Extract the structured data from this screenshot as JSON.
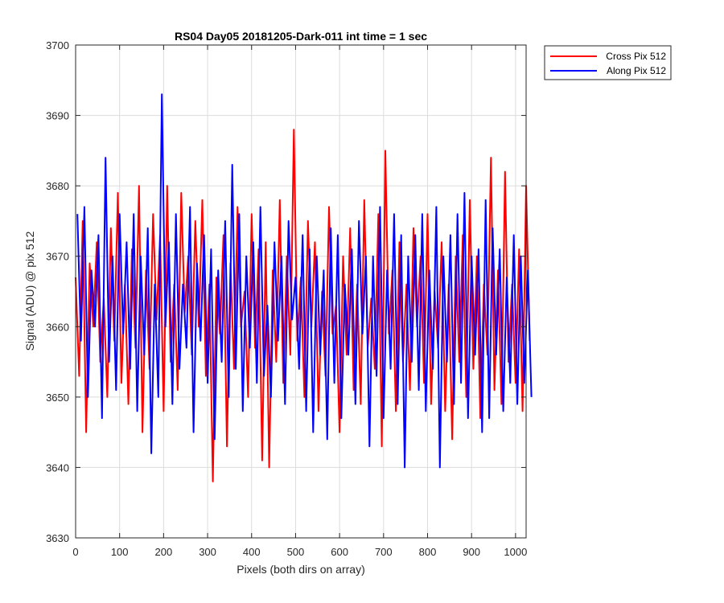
{
  "chart_data": {
    "type": "line",
    "title": "RS04 Day05 20181205-Dark-011 int time = 1 sec",
    "xlabel": "Pixels (both dirs on array)",
    "ylabel": "Signal (ADU) @ pix 512",
    "xlim": [
      0,
      1024
    ],
    "ylim": [
      3630,
      3700
    ],
    "xticks": [
      0,
      100,
      200,
      300,
      400,
      500,
      600,
      700,
      800,
      900,
      1000
    ],
    "yticks": [
      3630,
      3640,
      3650,
      3660,
      3670,
      3680,
      3690,
      3700
    ],
    "grid": true,
    "legend_placement": "outside-top-right",
    "series": [
      {
        "name": "Cross Pix 512",
        "color": "#ff0000",
        "x_start": 0,
        "x_step": 8,
        "values": [
          3667,
          3653,
          3675,
          3645,
          3669,
          3660,
          3672,
          3655,
          3664,
          3650,
          3674,
          3658,
          3679,
          3652,
          3666,
          3649,
          3671,
          3657,
          3680,
          3645,
          3668,
          3654,
          3676,
          3661,
          3673,
          3648,
          3680,
          3655,
          3666,
          3651,
          3679,
          3662,
          3670,
          3656,
          3675,
          3660,
          3678,
          3653,
          3666,
          3638,
          3667,
          3659,
          3673,
          3643,
          3669,
          3654,
          3677,
          3660,
          3665,
          3650,
          3676,
          3657,
          3671,
          3641,
          3672,
          3640,
          3668,
          3655,
          3678,
          3652,
          3670,
          3656,
          3688,
          3658,
          3667,
          3650,
          3675,
          3660,
          3672,
          3648,
          3665,
          3653,
          3677,
          3659,
          3663,
          3645,
          3670,
          3656,
          3674,
          3651,
          3666,
          3649,
          3678,
          3657,
          3664,
          3654,
          3676,
          3643,
          3685,
          3659,
          3668,
          3648,
          3672,
          3655,
          3666,
          3651,
          3674,
          3660,
          3670,
          3652,
          3676,
          3649,
          3665,
          3657,
          3672,
          3648,
          3666,
          3644,
          3670,
          3655,
          3673,
          3650,
          3678,
          3654,
          3670,
          3647,
          3666,
          3656,
          3684,
          3651,
          3668,
          3649,
          3682,
          3655,
          3666,
          3652,
          3671,
          3648,
          3680,
          3658
        ]
      },
      {
        "name": "Along Pix 512",
        "color": "#0000ff",
        "x_start": 4,
        "x_step": 8,
        "values": [
          3676,
          3658,
          3677,
          3650,
          3668,
          3660,
          3673,
          3647,
          3684,
          3655,
          3670,
          3651,
          3676,
          3659,
          3672,
          3654,
          3676,
          3648,
          3670,
          3656,
          3674,
          3642,
          3666,
          3650,
          3693,
          3660,
          3672,
          3649,
          3676,
          3654,
          3666,
          3657,
          3677,
          3645,
          3669,
          3658,
          3673,
          3652,
          3671,
          3644,
          3668,
          3655,
          3675,
          3650,
          3683,
          3654,
          3676,
          3648,
          3670,
          3657,
          3672,
          3652,
          3677,
          3653,
          3663,
          3650,
          3672,
          3658,
          3670,
          3649,
          3675,
          3661,
          3667,
          3654,
          3673,
          3648,
          3671,
          3645,
          3670,
          3656,
          3668,
          3644,
          3674,
          3652,
          3673,
          3647,
          3666,
          3656,
          3671,
          3649,
          3675,
          3659,
          3670,
          3643,
          3670,
          3653,
          3677,
          3647,
          3668,
          3654,
          3676,
          3649,
          3673,
          3640,
          3670,
          3655,
          3673,
          3651,
          3676,
          3648,
          3668,
          3654,
          3677,
          3640,
          3670,
          3655,
          3673,
          3649,
          3676,
          3652,
          3679,
          3647,
          3670,
          3656,
          3671,
          3645,
          3678,
          3647,
          3674,
          3656,
          3671,
          3648,
          3667,
          3652,
          3673,
          3649,
          3670,
          3652,
          3668,
          3650
        ]
      }
    ]
  }
}
